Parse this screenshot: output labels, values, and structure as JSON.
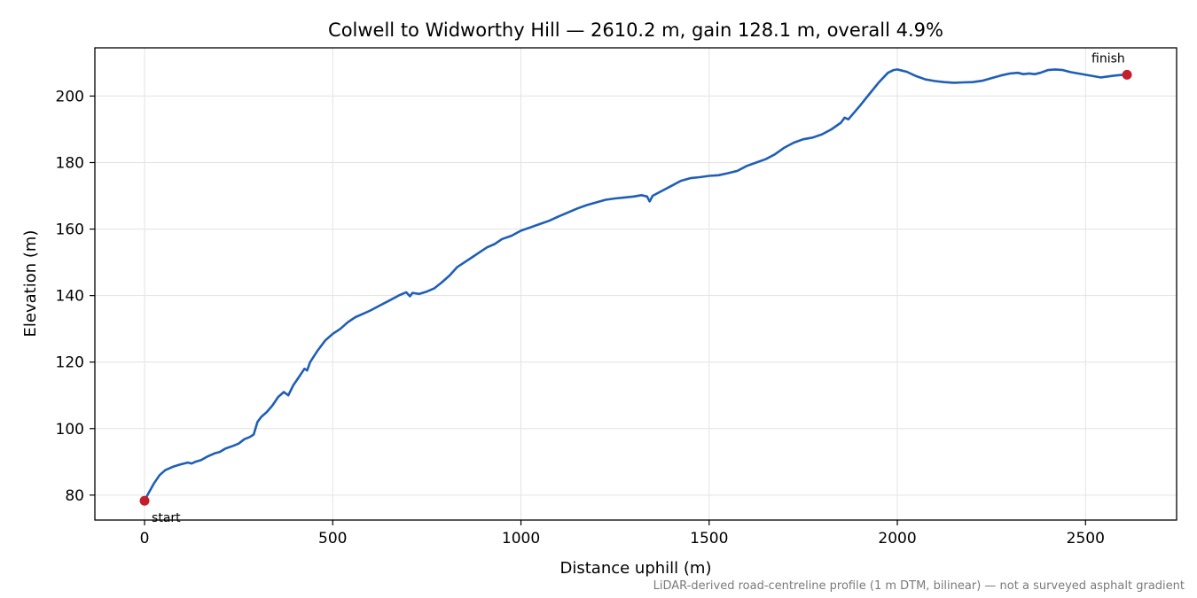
{
  "chart_data": {
    "type": "line",
    "title": "Colwell to Widworthy Hill — 2610.2 m, gain 128.1 m, overall 4.9%",
    "xlabel": "Distance uphill (m)",
    "ylabel": "Elevation (m)",
    "footnote": "LiDAR-derived road-centreline profile (1 m DTM, bilinear) — not a surveyed asphalt gradient",
    "xlim": [
      -132,
      2742
    ],
    "ylim": [
      72.5,
      214.5
    ],
    "x_ticks": [
      0,
      500,
      1000,
      1500,
      2000,
      2500
    ],
    "y_ticks": [
      80,
      100,
      120,
      140,
      160,
      180,
      200
    ],
    "grid": true,
    "line_color": "#1f5fb4",
    "marker_color": "#c41e2a",
    "series": [
      {
        "values": [
          [
            0,
            78.3
          ],
          [
            10,
            80.5
          ],
          [
            25,
            83.5
          ],
          [
            40,
            86.0
          ],
          [
            55,
            87.5
          ],
          [
            75,
            88.5
          ],
          [
            95,
            89.2
          ],
          [
            115,
            89.8
          ],
          [
            125,
            89.5
          ],
          [
            135,
            90.0
          ],
          [
            150,
            90.5
          ],
          [
            165,
            91.5
          ],
          [
            185,
            92.5
          ],
          [
            200,
            93.0
          ],
          [
            215,
            94.0
          ],
          [
            235,
            94.8
          ],
          [
            250,
            95.5
          ],
          [
            265,
            96.8
          ],
          [
            280,
            97.5
          ],
          [
            290,
            98.2
          ],
          [
            300,
            102.0
          ],
          [
            310,
            103.5
          ],
          [
            325,
            105.0
          ],
          [
            340,
            107.0
          ],
          [
            355,
            109.5
          ],
          [
            370,
            111.0
          ],
          [
            382,
            110.0
          ],
          [
            395,
            113.0
          ],
          [
            410,
            115.5
          ],
          [
            425,
            118.0
          ],
          [
            432,
            117.5
          ],
          [
            440,
            120.0
          ],
          [
            460,
            123.5
          ],
          [
            480,
            126.5
          ],
          [
            500,
            128.5
          ],
          [
            520,
            130.0
          ],
          [
            540,
            132.0
          ],
          [
            560,
            133.5
          ],
          [
            580,
            134.5
          ],
          [
            600,
            135.5
          ],
          [
            625,
            137.0
          ],
          [
            650,
            138.5
          ],
          [
            675,
            140.0
          ],
          [
            695,
            141.0
          ],
          [
            705,
            139.8
          ],
          [
            712,
            140.8
          ],
          [
            730,
            140.5
          ],
          [
            750,
            141.2
          ],
          [
            770,
            142.2
          ],
          [
            790,
            144.0
          ],
          [
            810,
            146.0
          ],
          [
            830,
            148.5
          ],
          [
            850,
            150.0
          ],
          [
            870,
            151.5
          ],
          [
            890,
            153.0
          ],
          [
            910,
            154.5
          ],
          [
            930,
            155.5
          ],
          [
            950,
            157.0
          ],
          [
            975,
            158.0
          ],
          [
            1000,
            159.5
          ],
          [
            1025,
            160.5
          ],
          [
            1050,
            161.5
          ],
          [
            1075,
            162.5
          ],
          [
            1100,
            163.8
          ],
          [
            1125,
            165.0
          ],
          [
            1150,
            166.2
          ],
          [
            1175,
            167.2
          ],
          [
            1200,
            168.0
          ],
          [
            1225,
            168.8
          ],
          [
            1250,
            169.2
          ],
          [
            1275,
            169.5
          ],
          [
            1300,
            169.8
          ],
          [
            1320,
            170.2
          ],
          [
            1335,
            169.8
          ],
          [
            1342,
            168.3
          ],
          [
            1350,
            170.0
          ],
          [
            1375,
            171.5
          ],
          [
            1400,
            173.0
          ],
          [
            1425,
            174.5
          ],
          [
            1450,
            175.3
          ],
          [
            1475,
            175.6
          ],
          [
            1500,
            176.0
          ],
          [
            1525,
            176.2
          ],
          [
            1550,
            176.8
          ],
          [
            1575,
            177.5
          ],
          [
            1600,
            179.0
          ],
          [
            1625,
            180.0
          ],
          [
            1650,
            181.0
          ],
          [
            1675,
            182.5
          ],
          [
            1700,
            184.5
          ],
          [
            1725,
            186.0
          ],
          [
            1750,
            187.0
          ],
          [
            1775,
            187.5
          ],
          [
            1800,
            188.5
          ],
          [
            1825,
            190.0
          ],
          [
            1850,
            192.0
          ],
          [
            1860,
            193.5
          ],
          [
            1870,
            193.0
          ],
          [
            1885,
            195.0
          ],
          [
            1900,
            197.0
          ],
          [
            1925,
            200.5
          ],
          [
            1950,
            204.0
          ],
          [
            1975,
            207.0
          ],
          [
            1990,
            207.8
          ],
          [
            2000,
            208.0
          ],
          [
            2025,
            207.3
          ],
          [
            2050,
            206.0
          ],
          [
            2075,
            205.0
          ],
          [
            2100,
            204.5
          ],
          [
            2125,
            204.2
          ],
          [
            2150,
            204.0
          ],
          [
            2175,
            204.1
          ],
          [
            2200,
            204.2
          ],
          [
            2225,
            204.6
          ],
          [
            2250,
            205.4
          ],
          [
            2275,
            206.2
          ],
          [
            2300,
            206.8
          ],
          [
            2320,
            207.0
          ],
          [
            2335,
            206.6
          ],
          [
            2350,
            206.8
          ],
          [
            2365,
            206.6
          ],
          [
            2380,
            207.0
          ],
          [
            2400,
            207.8
          ],
          [
            2420,
            208.0
          ],
          [
            2440,
            207.8
          ],
          [
            2460,
            207.2
          ],
          [
            2480,
            206.8
          ],
          [
            2500,
            206.4
          ],
          [
            2520,
            206.0
          ],
          [
            2540,
            205.6
          ],
          [
            2560,
            205.9
          ],
          [
            2580,
            206.2
          ],
          [
            2600,
            206.4
          ],
          [
            2610.2,
            206.4
          ]
        ]
      }
    ],
    "annotations": [
      {
        "text": "start",
        "x": 0,
        "y": 78.3
      },
      {
        "text": "finish",
        "x": 2610.2,
        "y": 206.4
      }
    ]
  }
}
